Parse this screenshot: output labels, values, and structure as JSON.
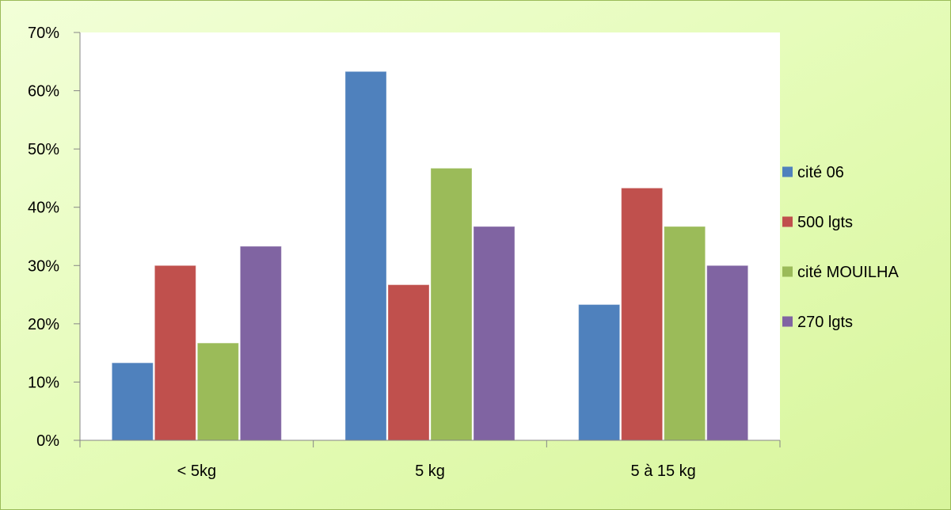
{
  "chart_data": {
    "type": "bar",
    "categories": [
      "< 5kg",
      "5 kg",
      "5 à 15 kg"
    ],
    "series": [
      {
        "name": "cité 06",
        "color": "#4f81bd",
        "values": [
          0.133,
          0.633,
          0.233
        ]
      },
      {
        "name": "500 lgts",
        "color": "#c0504d",
        "values": [
          0.3,
          0.267,
          0.433
        ]
      },
      {
        "name": "cité MOUILHA",
        "color": "#9bbb59",
        "values": [
          0.167,
          0.467,
          0.367
        ]
      },
      {
        "name": "270 lgts",
        "color": "#8064a2",
        "values": [
          0.333,
          0.367,
          0.3
        ]
      }
    ],
    "ylim": [
      0,
      0.7
    ],
    "yticks": [
      0,
      0.1,
      0.2,
      0.3,
      0.4,
      0.5,
      0.6,
      0.7
    ],
    "ytick_labels": [
      "0%",
      "10%",
      "20%",
      "30%",
      "40%",
      "50%",
      "60%",
      "70%"
    ],
    "title": "",
    "xlabel": "",
    "ylabel": "",
    "grid": false,
    "legend_position": "right"
  }
}
